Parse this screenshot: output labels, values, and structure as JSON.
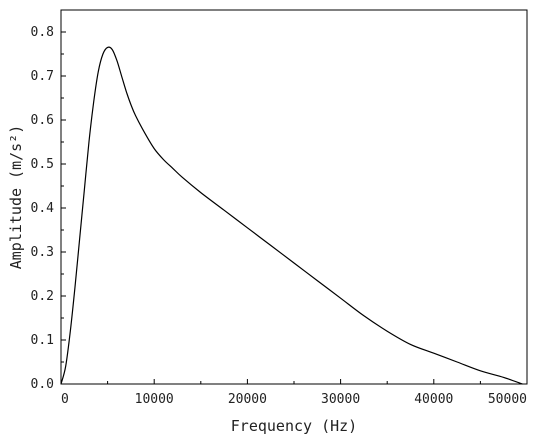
{
  "chart_data": {
    "type": "line",
    "title": "",
    "xlabel": "Frequency (Hz)",
    "ylabel": "Amplitude (m/s²)",
    "xlim": [
      0,
      50000
    ],
    "ylim": [
      0,
      0.85
    ],
    "xticks": [
      "0",
      "10000",
      "20000",
      "30000",
      "40000",
      "50000"
    ],
    "xtick_values": [
      0,
      10000,
      20000,
      30000,
      40000,
      50000
    ],
    "yticks": [
      "0.0",
      "0.1",
      "0.2",
      "0.3",
      "0.4",
      "0.5",
      "0.6",
      "0.7",
      "0.8"
    ],
    "ytick_values": [
      0,
      0.1,
      0.2,
      0.3,
      0.4,
      0.5,
      0.6,
      0.7,
      0.8
    ],
    "grid": false,
    "legend": "none",
    "line_color": "#000000",
    "series": [
      {
        "x": [
          0,
          500,
          1000,
          1500,
          2000,
          2500,
          3000,
          3500,
          4000,
          4500,
          5000,
          5500,
          6000,
          6500,
          7000,
          7500,
          8000,
          9000,
          10000,
          11000,
          12000,
          13000,
          15000,
          17500,
          20000,
          22500,
          25000,
          27500,
          30000,
          32500,
          35000,
          37500,
          40000,
          42500,
          45000,
          47500,
          49500
        ],
        "y": [
          0.0,
          0.04,
          0.12,
          0.22,
          0.33,
          0.44,
          0.55,
          0.64,
          0.71,
          0.75,
          0.765,
          0.76,
          0.735,
          0.7,
          0.665,
          0.635,
          0.61,
          0.57,
          0.535,
          0.51,
          0.49,
          0.47,
          0.435,
          0.395,
          0.355,
          0.315,
          0.275,
          0.235,
          0.195,
          0.155,
          0.12,
          0.09,
          0.07,
          0.05,
          0.03,
          0.015,
          0.0
        ]
      }
    ]
  }
}
